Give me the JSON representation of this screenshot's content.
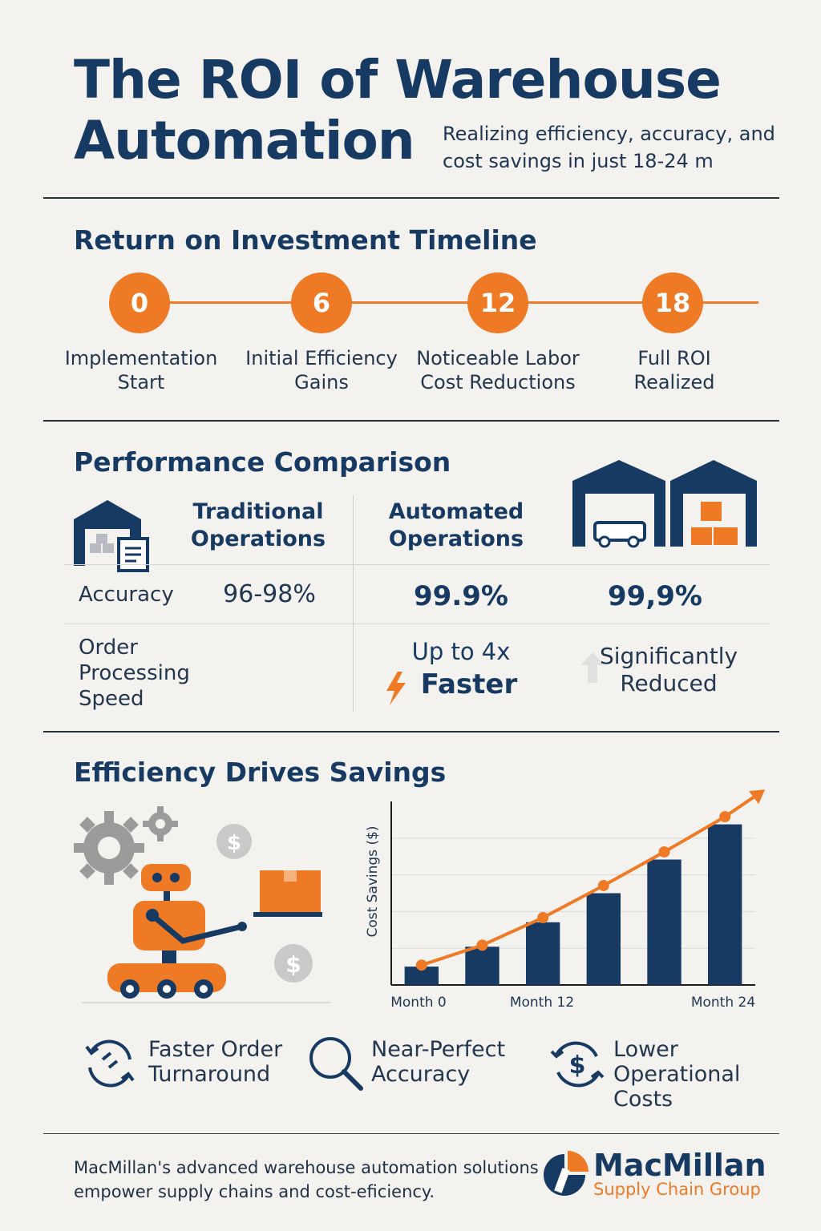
{
  "header": {
    "title": "The ROI of Warehouse Automation",
    "subtitle": "Realizing efficiency, accuracy, and cost savings in just 18-24 m"
  },
  "timeline": {
    "title": "Return on Investment Timeline",
    "milestones": [
      {
        "month": "0",
        "label": "Implementation Start"
      },
      {
        "month": "6",
        "label": "Initial Efficiency Gains"
      },
      {
        "month": "12",
        "label": "Noticeable Labor Cost Reductions"
      },
      {
        "month": "18",
        "label": "Full ROI Realized"
      }
    ]
  },
  "comparison": {
    "title": "Performance Comparison",
    "traditional_header": "Traditional Operations",
    "automated_header": "Automated Operations",
    "rows": [
      {
        "label": "Accuracy",
        "traditional": "96-98%",
        "automated": "99.9%",
        "extra": "99,9%"
      },
      {
        "label": "Order Processing Speed",
        "traditional": "",
        "automated_line1": "Up to 4x",
        "automated_line2": "Faster",
        "extra": "Significantly Reduced"
      }
    ]
  },
  "savings": {
    "title": "Efficiency Drives Savings",
    "benefits": [
      {
        "label": "Faster Order Turnaround",
        "icon": "refresh-cycle-icon"
      },
      {
        "label": "Near-Perfect Accuracy",
        "icon": "magnifier-icon"
      },
      {
        "label": "Lower Operational Costs",
        "icon": "dollar-cycle-icon"
      }
    ]
  },
  "chart_data": {
    "type": "bar",
    "ylabel": "Cost Savings ($)",
    "x_tick_labels": [
      "Month 0",
      "Month 12",
      "Month 24"
    ],
    "values": [
      12,
      25,
      41,
      60,
      82,
      105
    ],
    "trend": [
      13,
      26,
      44,
      65,
      87,
      110
    ],
    "ylim": [
      0,
      120
    ]
  },
  "footer": {
    "text": "MacMillan's advanced warehouse automation solutions empower supply chains and cost-eficiency.",
    "brand_name": "MacMillan",
    "brand_sub": "Supply Chain Group"
  },
  "colors": {
    "navy": "#173a63",
    "orange": "#ee7a25",
    "gray": "#9a9a9a"
  }
}
